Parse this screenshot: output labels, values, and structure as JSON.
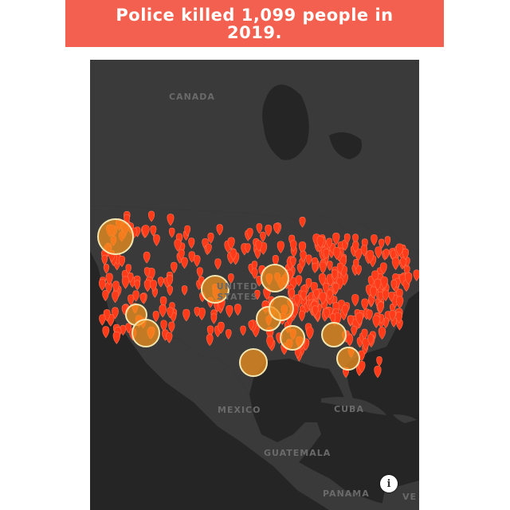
{
  "banner": {
    "title": "Police killed 1,099 people in 2019.",
    "background": "#f4604f"
  },
  "map": {
    "labels": {
      "canada": "CANADA",
      "united_states": "UNITED STATES",
      "mexico": "MEXICO",
      "cuba": "CUBA",
      "guatemala": "GUATEMALA",
      "panama": "PANAMA",
      "venezuela": "VE"
    },
    "colors": {
      "marker": "#ff3b1a",
      "cluster_fill": "#f0901e",
      "cluster_ring": "#f3e6b0",
      "land": "#3a3a3a",
      "water": "#252525"
    },
    "marker_icon": "map-pin-icon",
    "info_icon": "info-icon",
    "info_label": "i"
  }
}
